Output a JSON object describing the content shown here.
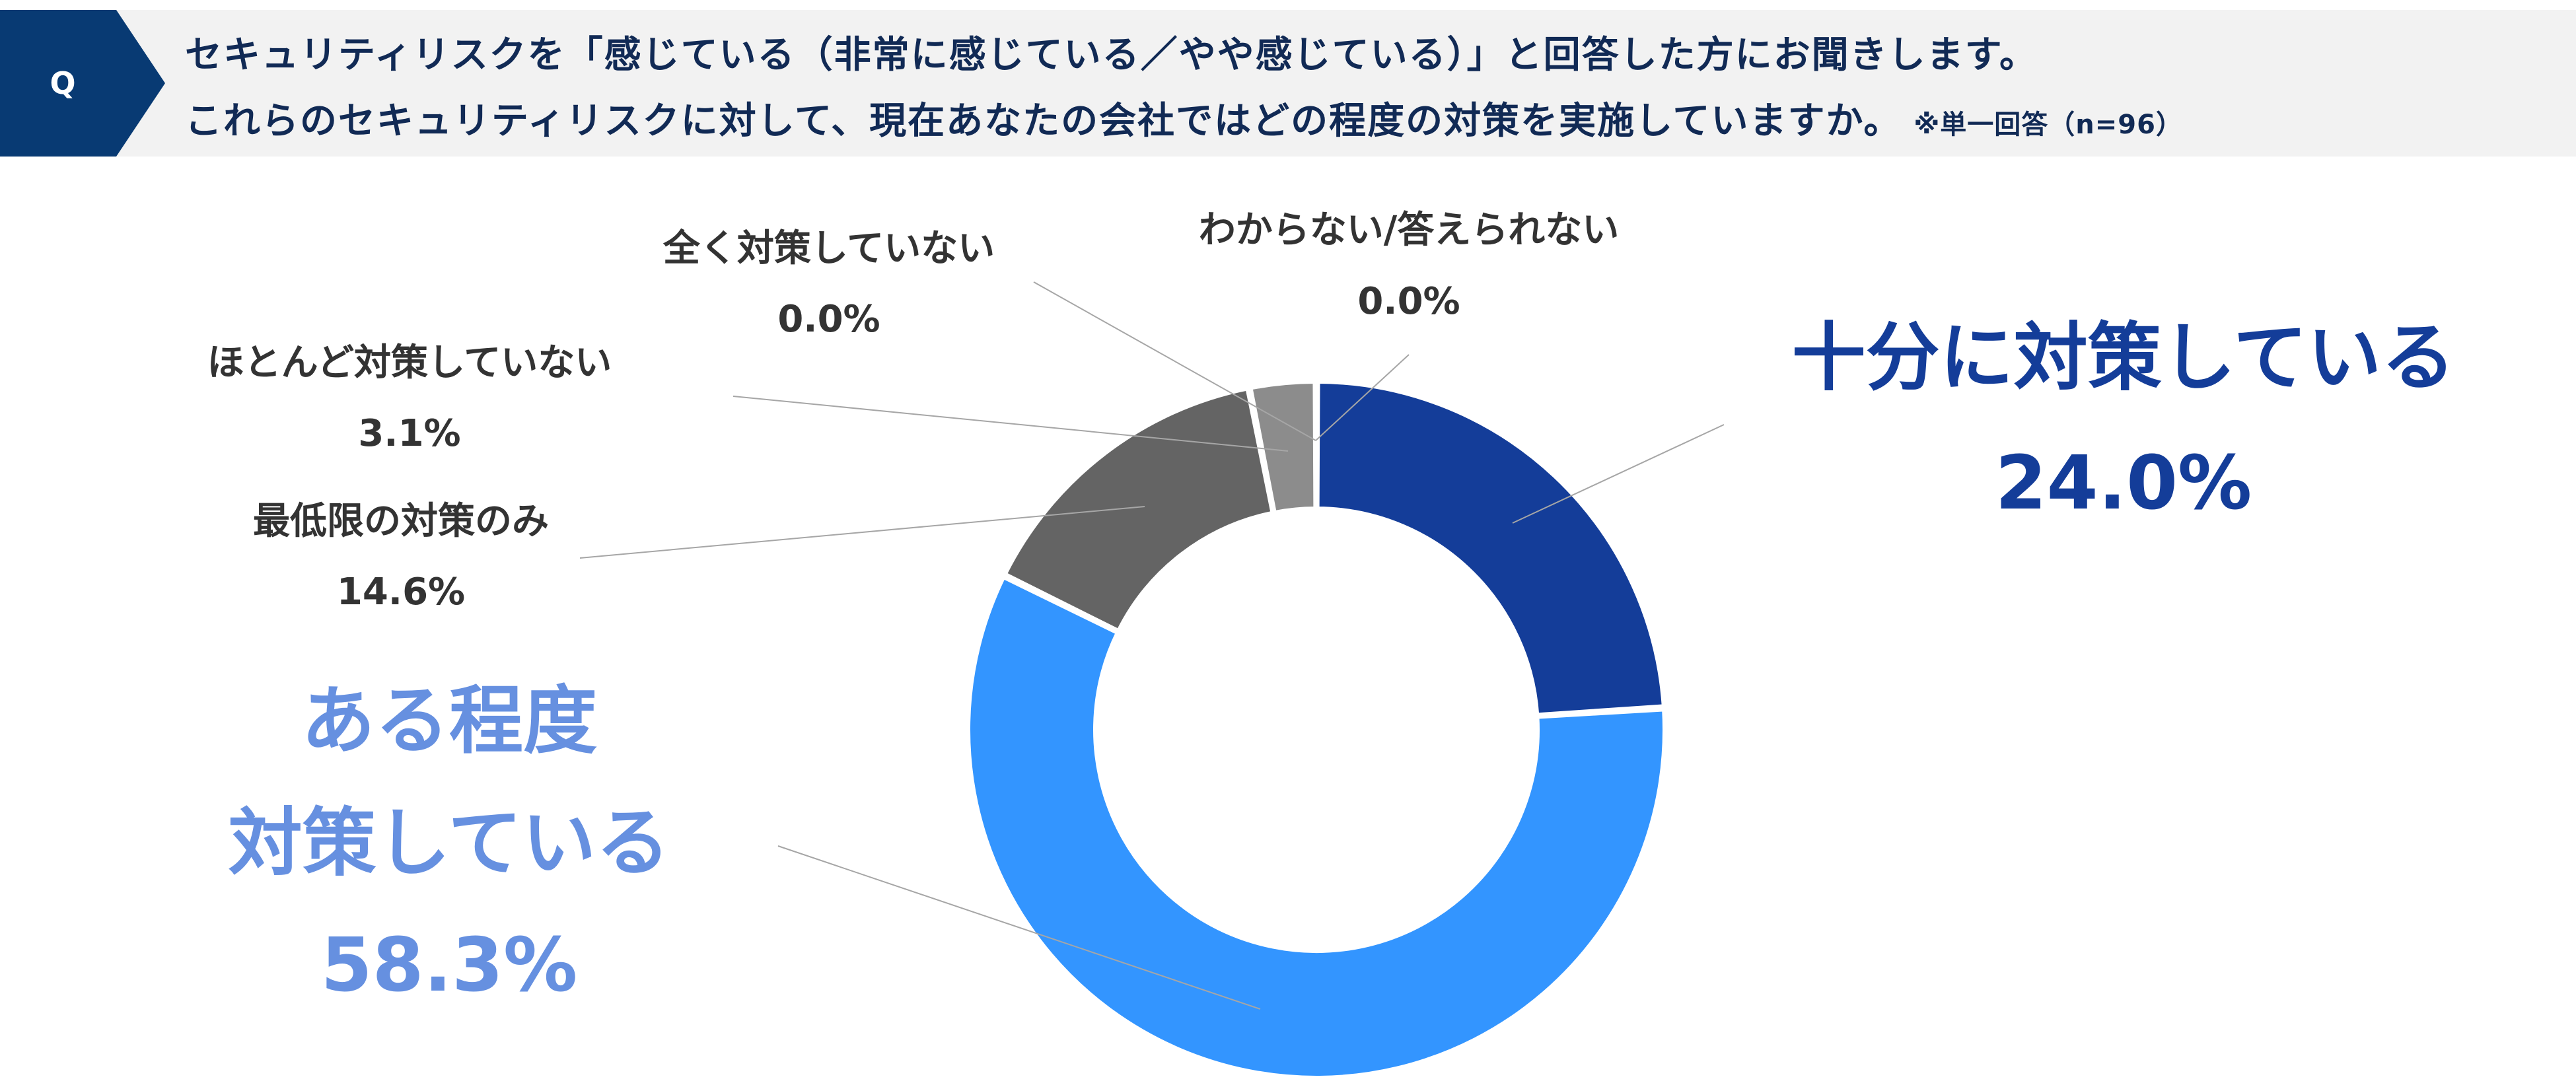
{
  "question": {
    "badge": "Q",
    "line1": "セキュリティリスクを「感じている（非常に感じている／やや感じている）」と回答した方にお聞きします。",
    "line2": "これらのセキュリティリスクに対して、現在あなたの会社ではどの程度の対策を実施していますか。",
    "note": "※単一回答（n=96）"
  },
  "chart_data": {
    "type": "pie",
    "variant": "donut",
    "title": "",
    "slices": [
      {
        "label": "十分に対策している",
        "value": 24.0,
        "value_label": "24.0%",
        "color": "#143d99"
      },
      {
        "label": "ある程度対策している",
        "label_lines": [
          "ある程度",
          "対策している"
        ],
        "value": 58.3,
        "value_label": "58.3%",
        "color": "#3395ff"
      },
      {
        "label": "最低限の対策のみ",
        "value": 14.6,
        "value_label": "14.6%",
        "color": "#646464"
      },
      {
        "label": "ほとんど対策していない",
        "value": 3.1,
        "value_label": "3.1%",
        "color": "#8c8c8c"
      },
      {
        "label": "全く対策していない",
        "value": 0.0,
        "value_label": "0.0%",
        "color": "#bfbfbf"
      },
      {
        "label": "わからない/答えられない",
        "value": 0.0,
        "value_label": "0.0%",
        "color": "#d9d9d9"
      }
    ],
    "label_colors": {
      "emphasis_1": "#143d99",
      "emphasis_2": "#6690e0",
      "normal": "#333333",
      "leader": "#a6a6a6"
    }
  }
}
